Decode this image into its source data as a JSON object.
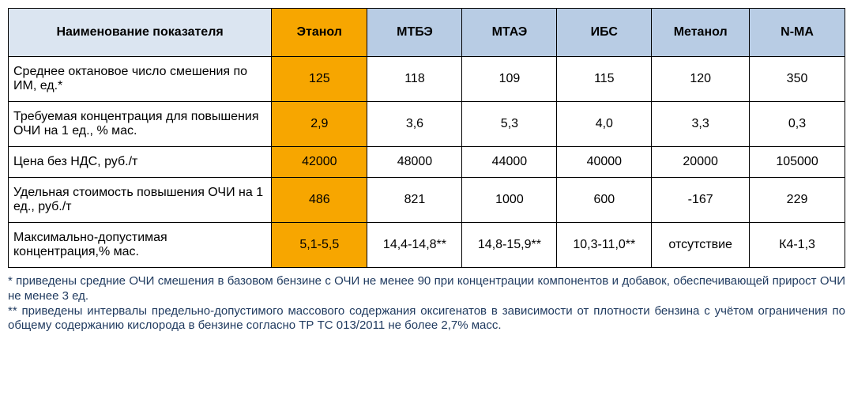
{
  "colors": {
    "header_bg": "#b8cce4",
    "header_label_bg": "#dbe5f1",
    "highlight_bg": "#f7a600",
    "cell_bg": "#ffffff",
    "border": "#000000",
    "footnote_text": "#1f3a5f"
  },
  "table": {
    "columns": [
      "Наименование показателя",
      "Этанол",
      "МТБЭ",
      "МТАЭ",
      "ИБС",
      "Метанол",
      "N-MA"
    ],
    "highlight_col_index": 1,
    "rows": [
      {
        "label": "Среднее октановое число смешения по ИМ, ед.*",
        "values": [
          "125",
          "118",
          "109",
          "115",
          "120",
          "350"
        ]
      },
      {
        "label": "Требуемая концентрация для повышения ОЧИ на 1 ед., % мас.",
        "values": [
          "2,9",
          "3,6",
          "5,3",
          "4,0",
          "3,3",
          "0,3"
        ]
      },
      {
        "label": "Цена без НДС, руб./т",
        "values": [
          "42000",
          "48000",
          "44000",
          "40000",
          "20000",
          "105000"
        ]
      },
      {
        "label": "Удельная  стоимость повышения ОЧИ на 1 ед., руб./т",
        "values": [
          "486",
          "821",
          "1000",
          "600",
          "-167",
          "229"
        ]
      },
      {
        "label": "Максимально-допустимая концентрация,% мас.",
        "values": [
          "5,1-5,5",
          "14,4-14,8**",
          "14,8-15,9**",
          "10,3-11,0**",
          "отсутствие",
          "К4-1,3"
        ]
      }
    ]
  },
  "footnotes": [
    "* приведены средние ОЧИ смешения в базовом бензине с ОЧИ не менее 90 при концентрации компонентов и добавок, обеспечивающей прирост ОЧИ не менее 3 ед.",
    "** приведены интервалы предельно-допустимого массового содержания оксигенатов в зависимости от плотности бензина с учётом ограничения по общему содержанию кислорода в бензине согласно ТР ТС 013/2011 не более 2,7% масс."
  ]
}
